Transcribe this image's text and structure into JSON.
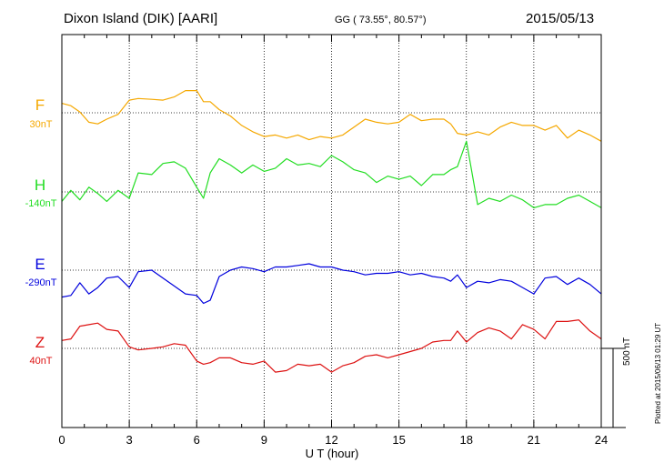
{
  "header": {
    "station": "Dixon Island (DIK)  [AARI]",
    "coords": "GG ( 73.55°,  80.57°)",
    "date": "2015/05/13"
  },
  "footer": {
    "xlabel": "U T (hour)",
    "scale_label": "500 nT",
    "plotted_at": "Plotted at 2015/06/13 01:29 UT"
  },
  "colors": {
    "F": "#f5a800",
    "H": "#22dd22",
    "E": "#0000dd",
    "Z": "#dd1111"
  },
  "chart_data": {
    "type": "line",
    "title": "Dixon Island (DIK)  [AARI]",
    "xlabel": "U T (hour)",
    "xlim": [
      0,
      24
    ],
    "x_ticks": [
      "0",
      "3",
      "6",
      "9",
      "12",
      "15",
      "18",
      "21",
      "24"
    ],
    "scale_bar": "500 nT",
    "series": [
      {
        "name": "F",
        "offset": "30nT",
        "x": [
          0,
          0.4,
          0.8,
          1.2,
          1.6,
          2.0,
          2.5,
          3.0,
          3.4,
          4.0,
          4.5,
          5.0,
          5.5,
          6.0,
          6.3,
          6.6,
          7.0,
          7.5,
          8.0,
          8.5,
          9.0,
          9.5,
          10.0,
          10.5,
          11.0,
          11.5,
          12.0,
          12.5,
          13.0,
          13.5,
          14.0,
          14.5,
          15.0,
          15.5,
          16.0,
          16.5,
          17.0,
          17.3,
          17.6,
          18.0,
          18.5,
          19.0,
          19.5,
          20.0,
          20.5,
          21.0,
          21.5,
          22.0,
          22.5,
          23.0,
          23.5,
          24.0
        ],
        "y": [
          60,
          45,
          5,
          -60,
          -70,
          -40,
          -10,
          80,
          90,
          85,
          80,
          100,
          140,
          140,
          70,
          70,
          20,
          -20,
          -80,
          -120,
          -150,
          -140,
          -160,
          -140,
          -170,
          -150,
          -160,
          -140,
          -90,
          -40,
          -60,
          -70,
          -60,
          -10,
          -50,
          -40,
          -40,
          -70,
          -130,
          -140,
          -120,
          -140,
          -90,
          -60,
          -80,
          -80,
          -110,
          -80,
          -160,
          -110,
          -140,
          -180
        ]
      },
      {
        "name": "H",
        "offset": "-140nT",
        "x": [
          0,
          0.4,
          0.8,
          1.2,
          1.6,
          2.0,
          2.5,
          3.0,
          3.4,
          4.0,
          4.5,
          5.0,
          5.5,
          6.0,
          6.3,
          6.6,
          7.0,
          7.5,
          8.0,
          8.5,
          9.0,
          9.5,
          10.0,
          10.5,
          11.0,
          11.5,
          12.0,
          12.5,
          13.0,
          13.5,
          14.0,
          14.5,
          15.0,
          15.5,
          16.0,
          16.5,
          17.0,
          17.3,
          17.6,
          18.0,
          18.5,
          19.0,
          19.5,
          20.0,
          20.5,
          21.0,
          21.5,
          22.0,
          22.5,
          23.0,
          23.5,
          24.0
        ],
        "y": [
          -60,
          10,
          -50,
          30,
          -10,
          -60,
          10,
          -40,
          120,
          110,
          180,
          190,
          150,
          30,
          -40,
          120,
          210,
          170,
          120,
          170,
          130,
          150,
          210,
          170,
          180,
          160,
          230,
          190,
          140,
          120,
          60,
          100,
          80,
          100,
          40,
          110,
          110,
          140,
          160,
          320,
          -80,
          -40,
          -60,
          -20,
          -50,
          -100,
          -80,
          -80,
          -40,
          -20,
          -60,
          -100
        ]
      },
      {
        "name": "E",
        "offset": "-290nT",
        "x": [
          0,
          0.4,
          0.8,
          1.2,
          1.6,
          2.0,
          2.5,
          3.0,
          3.4,
          4.0,
          4.5,
          5.0,
          5.5,
          6.0,
          6.3,
          6.6,
          7.0,
          7.5,
          8.0,
          8.5,
          9.0,
          9.5,
          10.0,
          10.5,
          11.0,
          11.5,
          12.0,
          12.5,
          13.0,
          13.5,
          14.0,
          14.5,
          15.0,
          15.5,
          16.0,
          16.5,
          17.0,
          17.3,
          17.6,
          18.0,
          18.5,
          19.0,
          19.5,
          20.0,
          20.5,
          21.0,
          21.5,
          22.0,
          22.5,
          23.0,
          23.5,
          24.0
        ],
        "y": [
          -170,
          -160,
          -80,
          -150,
          -110,
          -50,
          -40,
          -110,
          -10,
          0,
          -50,
          -100,
          -150,
          -160,
          -210,
          -190,
          -40,
          0,
          20,
          10,
          -10,
          20,
          20,
          30,
          40,
          20,
          20,
          0,
          -10,
          -30,
          -20,
          -20,
          -10,
          -30,
          -20,
          -40,
          -50,
          -70,
          -30,
          -110,
          -70,
          -80,
          -60,
          -70,
          -110,
          -150,
          -50,
          -40,
          -90,
          -50,
          -90,
          -150
        ]
      },
      {
        "name": "Z",
        "offset": "40nT",
        "x": [
          0,
          0.4,
          0.8,
          1.2,
          1.6,
          2.0,
          2.5,
          3.0,
          3.4,
          4.0,
          4.5,
          5.0,
          5.5,
          6.0,
          6.3,
          6.6,
          7.0,
          7.5,
          8.0,
          8.5,
          9.0,
          9.5,
          10.0,
          10.5,
          11.0,
          11.5,
          12.0,
          12.5,
          13.0,
          13.5,
          14.0,
          14.5,
          15.0,
          15.5,
          16.0,
          16.5,
          17.0,
          17.3,
          17.6,
          18.0,
          18.5,
          19.0,
          19.5,
          20.0,
          20.5,
          21.0,
          21.5,
          22.0,
          22.5,
          23.0,
          23.5,
          24.0
        ],
        "y": [
          50,
          60,
          140,
          150,
          160,
          120,
          110,
          10,
          -10,
          0,
          10,
          30,
          20,
          -80,
          -100,
          -90,
          -60,
          -60,
          -90,
          -100,
          -80,
          -150,
          -140,
          -100,
          -110,
          -100,
          -150,
          -110,
          -90,
          -50,
          -40,
          -60,
          -40,
          -20,
          0,
          40,
          50,
          50,
          110,
          40,
          100,
          130,
          110,
          60,
          150,
          120,
          60,
          170,
          170,
          180,
          110,
          60
        ]
      }
    ]
  }
}
